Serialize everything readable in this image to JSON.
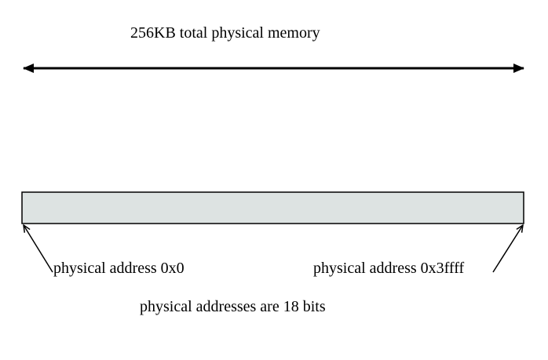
{
  "diagram": {
    "total_memory_label": "256KB total physical memory",
    "start_address_label": "physical address 0x0",
    "end_address_label": "physical address 0x3ffff",
    "address_bits_label": "physical addresses are 18 bits",
    "colors": {
      "memory_block_fill": "#dde3e2",
      "line": "#000000",
      "background": "#ffffff"
    }
  }
}
